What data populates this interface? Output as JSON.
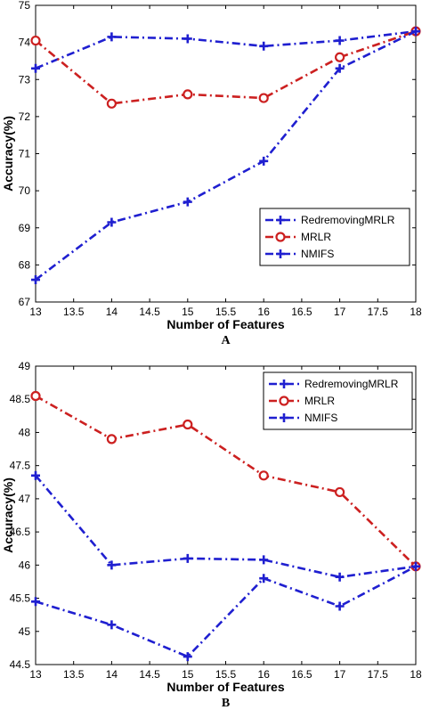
{
  "chart_data": [
    {
      "type": "line",
      "panel_label": "A",
      "xlabel": "Number of Features",
      "ylabel": "Accuracy(%)",
      "xlim": [
        13,
        18
      ],
      "ylim": [
        67,
        75
      ],
      "xticks": [
        "13",
        "13.5",
        "14",
        "14.5",
        "15",
        "15.5",
        "16",
        "16.5",
        "17",
        "17.5",
        "18"
      ],
      "yticks": [
        "67",
        "68",
        "69",
        "70",
        "71",
        "72",
        "73",
        "74",
        "75"
      ],
      "legend_position": "bottom-right",
      "x": [
        13,
        14,
        15,
        16,
        17,
        18
      ],
      "series": [
        {
          "name": "RedremovingMRLR",
          "color": "#1f1fd0",
          "marker": "plus",
          "values": [
            73.3,
            74.15,
            74.1,
            73.9,
            74.05,
            74.3
          ]
        },
        {
          "name": "MRLR",
          "color": "#cc2020",
          "marker": "circle",
          "values": [
            74.05,
            72.35,
            72.6,
            72.5,
            73.6,
            74.3
          ]
        },
        {
          "name": "NMIFS",
          "color": "#1f1fd0",
          "marker": "plus",
          "values": [
            67.6,
            69.15,
            69.7,
            70.8,
            73.3,
            74.3
          ]
        }
      ]
    },
    {
      "type": "line",
      "panel_label": "B",
      "xlabel": "Number of Features",
      "ylabel": "Accuracy(%)",
      "xlim": [
        13,
        18
      ],
      "ylim": [
        44.5,
        49
      ],
      "xticks": [
        "13",
        "13.5",
        "14",
        "14.5",
        "15",
        "15.5",
        "16",
        "16.5",
        "17",
        "17.5",
        "18"
      ],
      "yticks": [
        "44.5",
        "45",
        "45.5",
        "46",
        "46.5",
        "47",
        "47.5",
        "48",
        "48.5",
        "49"
      ],
      "legend_position": "top-right",
      "x": [
        13,
        14,
        15,
        16,
        17,
        18
      ],
      "series": [
        {
          "name": "RedremovingMRLR",
          "color": "#1f1fd0",
          "marker": "plus",
          "values": [
            47.35,
            46.0,
            46.1,
            46.08,
            45.82,
            45.98
          ]
        },
        {
          "name": "MRLR",
          "color": "#cc2020",
          "marker": "circle",
          "values": [
            48.55,
            47.9,
            48.12,
            47.35,
            47.1,
            45.98
          ]
        },
        {
          "name": "NMIFS",
          "color": "#1f1fd0",
          "marker": "plus",
          "values": [
            45.45,
            45.1,
            44.62,
            45.8,
            45.38,
            45.98
          ]
        }
      ]
    }
  ]
}
